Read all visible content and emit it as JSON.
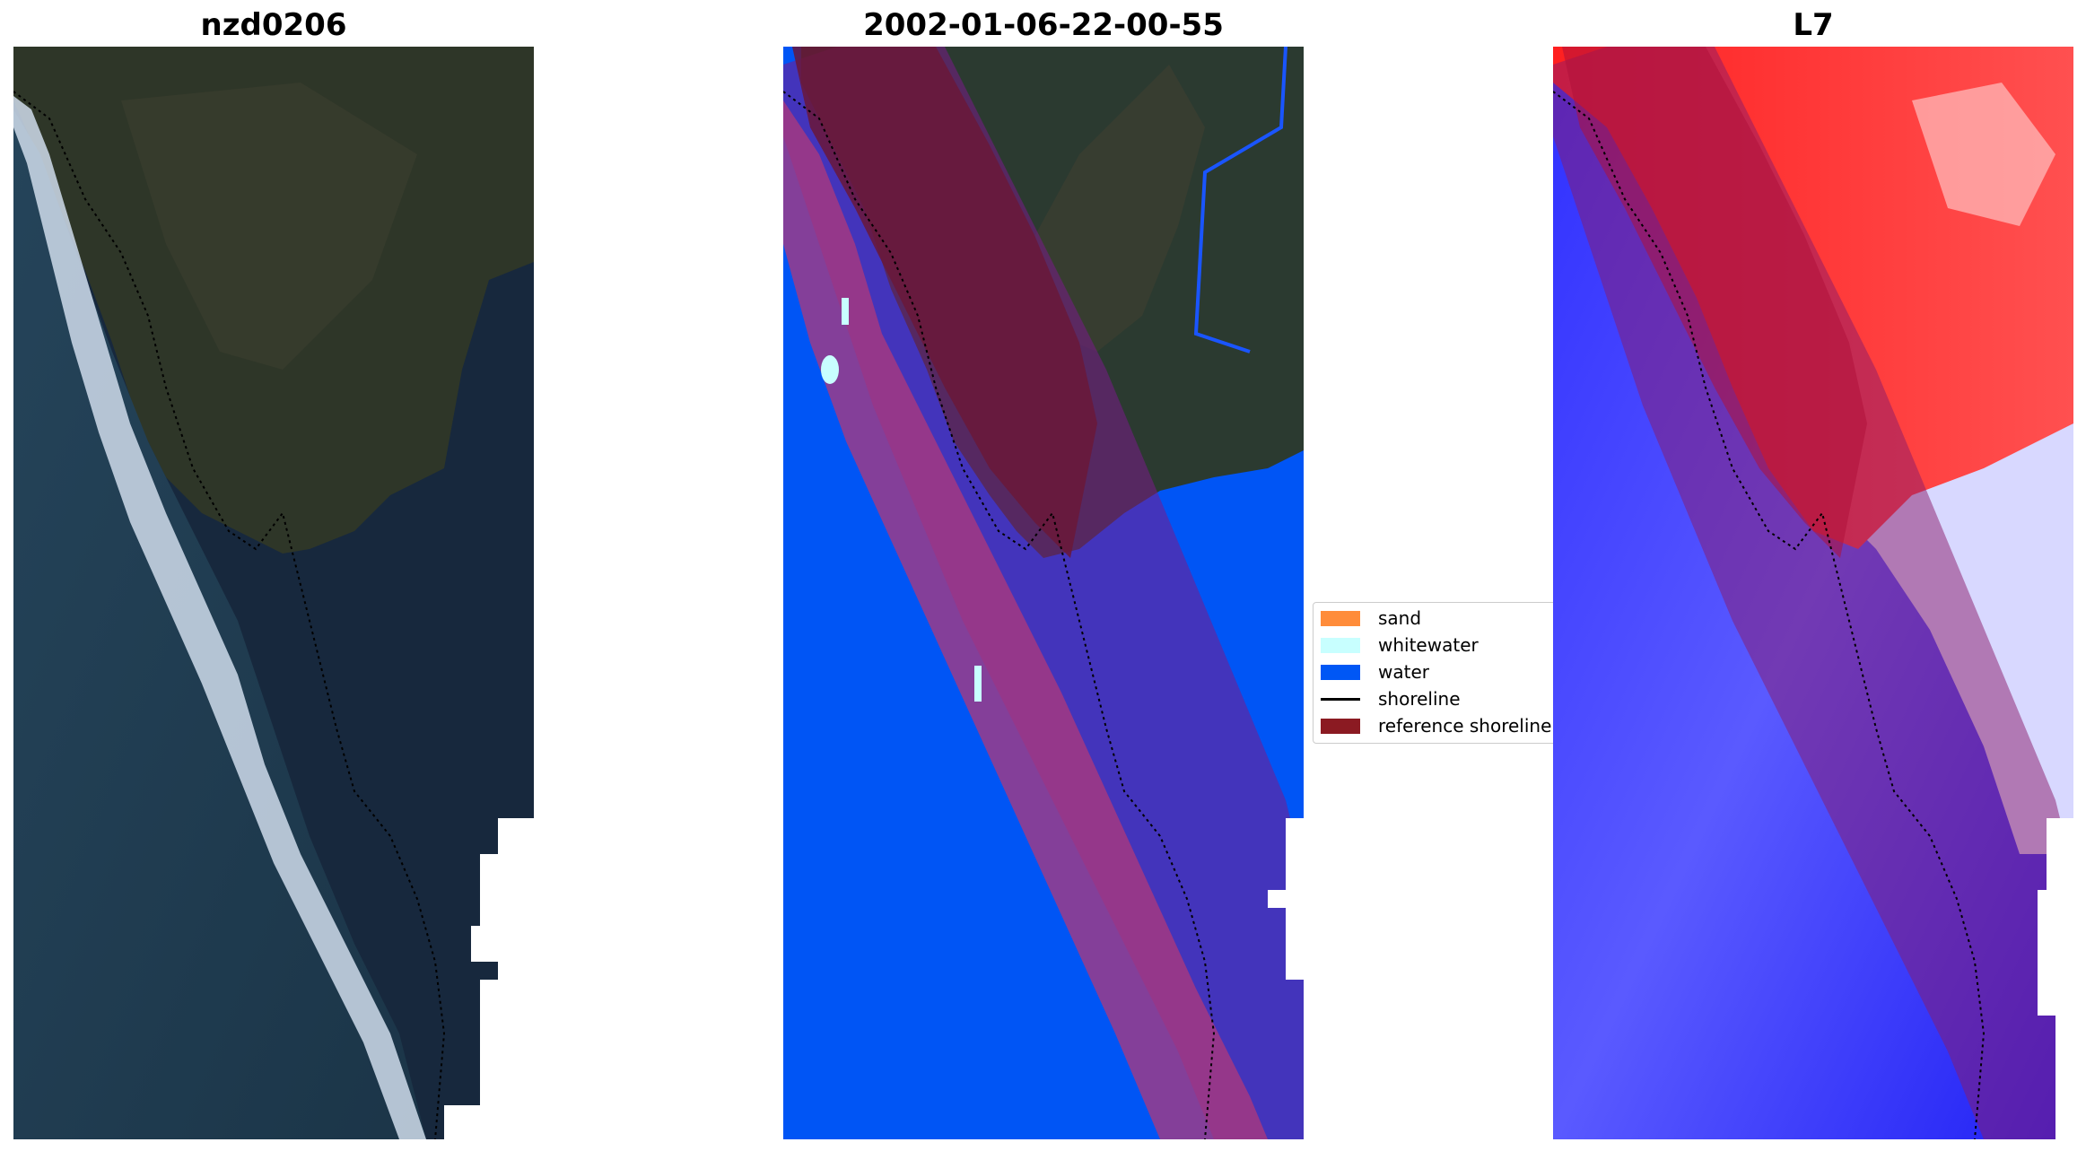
{
  "panels": [
    {
      "title": "nzd0206"
    },
    {
      "title": "2002-01-06-22-00-55"
    },
    {
      "title": "L7"
    }
  ],
  "legend": {
    "items": [
      {
        "label": "sand",
        "color": "#ff8c3a",
        "kind": "patch"
      },
      {
        "label": "whitewater",
        "color": "#c8ffff",
        "kind": "patch"
      },
      {
        "label": "water",
        "color": "#0057f5",
        "kind": "patch"
      },
      {
        "label": "shoreline",
        "color": "#000000",
        "kind": "line"
      },
      {
        "label": "reference shoreline",
        "color": "#8b1a22",
        "kind": "patch"
      }
    ]
  },
  "colors": {
    "land": "#2c3428",
    "ocean_dark": "#1a3046",
    "surf": "#d8e4f0",
    "water_class": "#0055f5",
    "reference_band": "#8b1a40",
    "index_positive": "#ff1010",
    "index_negative": "#1c1cff"
  }
}
